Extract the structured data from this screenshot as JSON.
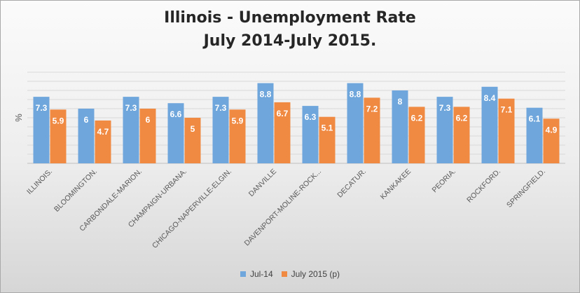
{
  "chart_data": {
    "type": "bar",
    "title_line1": "Illinois - Unemployment Rate",
    "title_line2": "July 2014-July 2015.",
    "ylabel": "%",
    "ylim": [
      0,
      10
    ],
    "grid": true,
    "legend_position": "bottom",
    "categories": [
      "ILLINOIS.",
      "BLOOMINGTON.",
      "CARBONDALE-MARION.",
      "CHAMPAIGN-URBANA.",
      "CHICAGO-NAPERVILLE-ELGIN.",
      "DANVILLE",
      "DAVENPORT-MOLINE-ROCK...",
      "DECATUR.",
      "KANKAKEE",
      "PEORIA.",
      "ROCKFORD.",
      "SPRINGFIELD."
    ],
    "series": [
      {
        "name": "Jul-14",
        "color": "#6fa6db",
        "values": [
          7.3,
          6,
          7.3,
          6.6,
          7.3,
          8.8,
          6.3,
          8.8,
          8,
          7.3,
          8.4,
          6.1
        ]
      },
      {
        "name": "July 2015 (p)",
        "color": "#f08a43",
        "values": [
          5.9,
          4.7,
          6,
          5,
          5.9,
          6.7,
          5.1,
          7.2,
          6.2,
          6.2,
          7.1,
          4.9
        ]
      }
    ]
  }
}
